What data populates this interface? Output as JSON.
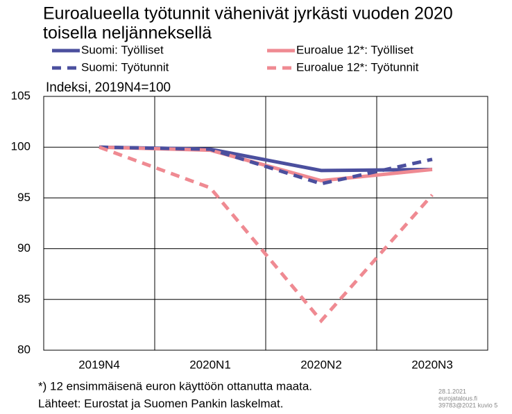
{
  "chart_data": {
    "type": "line",
    "title": [
      "Euroalueella työtunnit vähenivät jyrkästi vuoden 2020",
      "toisella neljänneksellä"
    ],
    "ylabel": "Indeksi, 2019N4=100",
    "categories": [
      "2019N4",
      "2020N1",
      "2020N2",
      "2020N3"
    ],
    "series": [
      {
        "name": "Suomi: Työlliset",
        "color": "#4b4f9e",
        "dashed": false,
        "values": [
          100,
          99.8,
          97.7,
          97.8
        ]
      },
      {
        "name": "Euroalue 12*: Työlliset",
        "color": "#ef8a92",
        "dashed": false,
        "values": [
          100,
          99.7,
          96.7,
          97.8
        ]
      },
      {
        "name": "Suomi: Työtunnit",
        "color": "#4b4f9e",
        "dashed": true,
        "values": [
          100,
          99.8,
          96.4,
          98.8
        ]
      },
      {
        "name": "Euroalue 12*: Työtunnit",
        "color": "#ef8a92",
        "dashed": true,
        "values": [
          100,
          96.0,
          82.9,
          95.3
        ]
      }
    ],
    "ylim": [
      80,
      105
    ],
    "yticks": [
      80,
      85,
      90,
      95,
      100,
      105
    ],
    "grid": true,
    "footnotes": [
      "*) 12 ensimmäisenä euron käyttöön ottanutta maata.",
      "Lähteet: Eurostat ja Suomen Pankin laskelmat."
    ],
    "credits": [
      "28.1.2021",
      "eurojatalous.fi",
      "39783@2021 kuvio 5"
    ]
  }
}
